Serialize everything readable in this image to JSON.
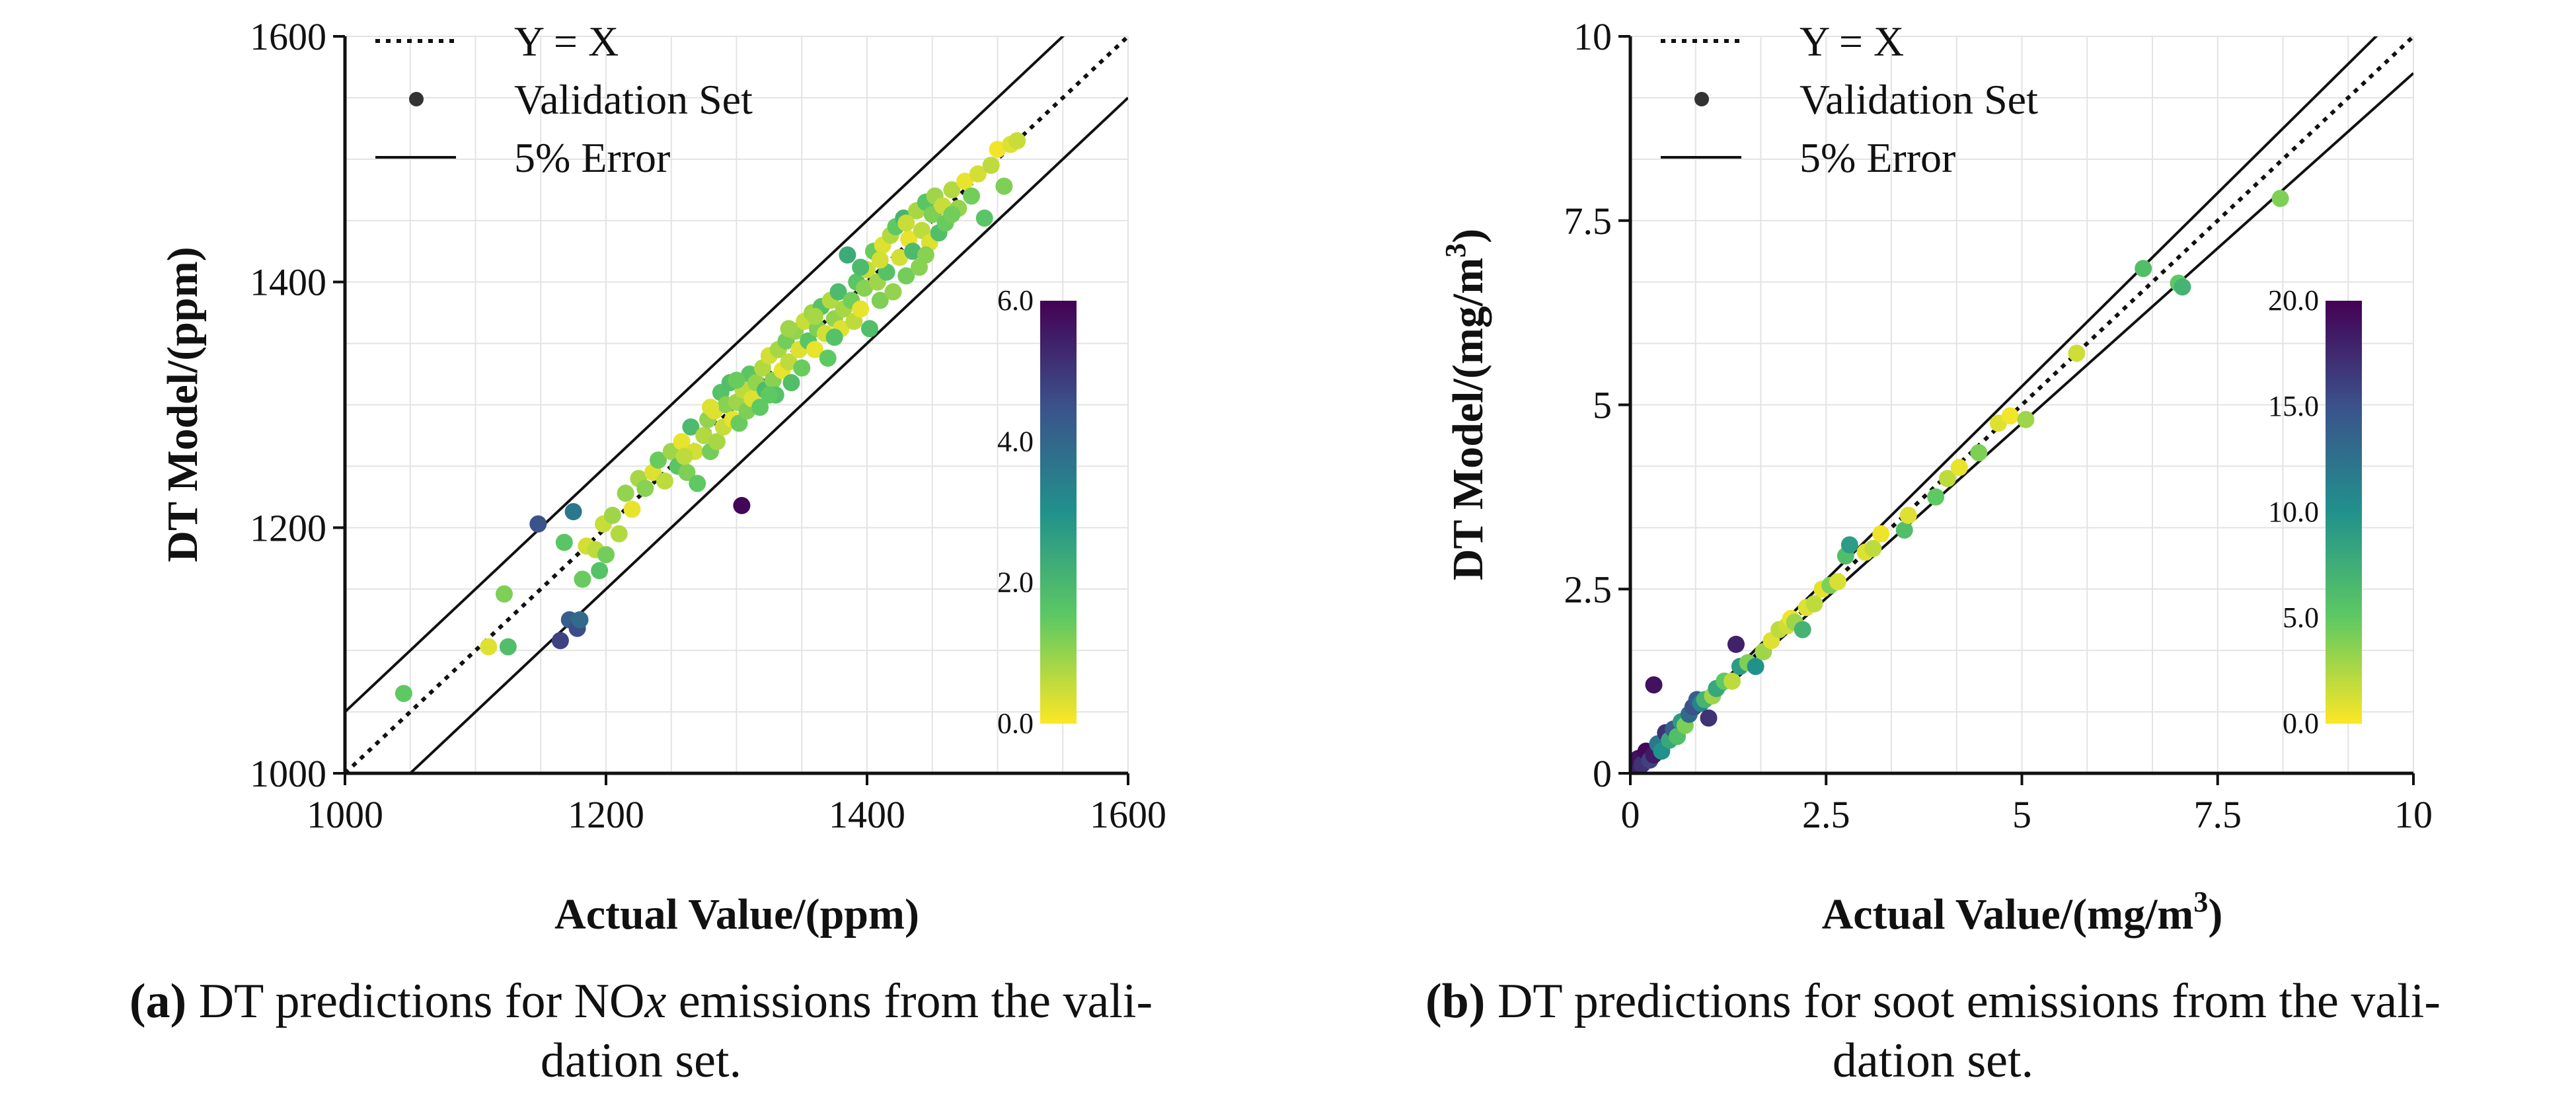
{
  "chart_data": [
    {
      "type": "scatter",
      "id": "a",
      "xlabel": "Actual Value/(ppm)",
      "ylabel": "DT Model/(ppm)",
      "xlim": [
        1000,
        1600
      ],
      "ylim": [
        1000,
        1600
      ],
      "xticks": [
        "1000",
        "1200",
        "1400",
        "1600"
      ],
      "yticks": [
        "1000",
        "1200",
        "1400",
        "1600"
      ],
      "grid": true,
      "legend": [
        "Y = X",
        "Validation Set",
        "5% Error"
      ],
      "legend_position": "top-left",
      "error_band_pct": 5,
      "colorbar": {
        "ticks": [
          "0.0",
          "2.0",
          "4.0",
          "6.0"
        ],
        "range": [
          0,
          6
        ],
        "colormap": "viridis_r"
      },
      "caption_tag": "(a)",
      "caption_text_1": " DT predictions for NO",
      "caption_italic": "x",
      "caption_text_2": " emissions from the vali-",
      "caption_line_2": "dation set.",
      "points": [
        {
          "x": 1045,
          "y": 1065,
          "c": 1.5
        },
        {
          "x": 1110,
          "y": 1103,
          "c": 0.3
        },
        {
          "x": 1122,
          "y": 1146,
          "c": 1.2
        },
        {
          "x": 1125,
          "y": 1103,
          "c": 1.8
        },
        {
          "x": 1148,
          "y": 1203,
          "c": 4.5
        },
        {
          "x": 1165,
          "y": 1108,
          "c": 4.8
        },
        {
          "x": 1172,
          "y": 1125,
          "c": 4.2
        },
        {
          "x": 1178,
          "y": 1118,
          "c": 4.6
        },
        {
          "x": 1175,
          "y": 1213,
          "c": 3.6
        },
        {
          "x": 1180,
          "y": 1125,
          "c": 3.9
        },
        {
          "x": 1168,
          "y": 1188,
          "c": 1.6
        },
        {
          "x": 1182,
          "y": 1158,
          "c": 1.4
        },
        {
          "x": 1185,
          "y": 1185,
          "c": 0.4
        },
        {
          "x": 1192,
          "y": 1182,
          "c": 0.6
        },
        {
          "x": 1195,
          "y": 1165,
          "c": 1.7
        },
        {
          "x": 1200,
          "y": 1178,
          "c": 1.3
        },
        {
          "x": 1198,
          "y": 1203,
          "c": 0.5
        },
        {
          "x": 1205,
          "y": 1210,
          "c": 0.9
        },
        {
          "x": 1210,
          "y": 1195,
          "c": 0.7
        },
        {
          "x": 1215,
          "y": 1228,
          "c": 1.0
        },
        {
          "x": 1220,
          "y": 1215,
          "c": 0.2
        },
        {
          "x": 1225,
          "y": 1240,
          "c": 0.8
        },
        {
          "x": 1230,
          "y": 1232,
          "c": 1.1
        },
        {
          "x": 1236,
          "y": 1245,
          "c": 0.3
        },
        {
          "x": 1240,
          "y": 1255,
          "c": 1.4
        },
        {
          "x": 1245,
          "y": 1238,
          "c": 0.6
        },
        {
          "x": 1250,
          "y": 1262,
          "c": 0.9
        },
        {
          "x": 1255,
          "y": 1250,
          "c": 1.6
        },
        {
          "x": 1258,
          "y": 1270,
          "c": 0.2
        },
        {
          "x": 1262,
          "y": 1245,
          "c": 1.2
        },
        {
          "x": 1265,
          "y": 1282,
          "c": 1.9
        },
        {
          "x": 1268,
          "y": 1262,
          "c": 0.4
        },
        {
          "x": 1270,
          "y": 1236,
          "c": 1.5
        },
        {
          "x": 1275,
          "y": 1275,
          "c": 0.7
        },
        {
          "x": 1278,
          "y": 1288,
          "c": 1.0
        },
        {
          "x": 1280,
          "y": 1262,
          "c": 1.3
        },
        {
          "x": 1283,
          "y": 1295,
          "c": 0.3
        },
        {
          "x": 1285,
          "y": 1270,
          "c": 0.8
        },
        {
          "x": 1288,
          "y": 1310,
          "c": 1.7
        },
        {
          "x": 1290,
          "y": 1282,
          "c": 0.5
        },
        {
          "x": 1292,
          "y": 1300,
          "c": 1.1
        },
        {
          "x": 1295,
          "y": 1318,
          "c": 1.8
        },
        {
          "x": 1297,
          "y": 1288,
          "c": 0.2
        },
        {
          "x": 1300,
          "y": 1302,
          "c": 0.9
        },
        {
          "x": 1302,
          "y": 1285,
          "c": 1.4
        },
        {
          "x": 1304,
          "y": 1218,
          "c": 5.9
        },
        {
          "x": 1305,
          "y": 1312,
          "c": 0.6
        },
        {
          "x": 1308,
          "y": 1295,
          "c": 1.2
        },
        {
          "x": 1310,
          "y": 1325,
          "c": 1.6
        },
        {
          "x": 1312,
          "y": 1305,
          "c": 0.3
        },
        {
          "x": 1315,
          "y": 1318,
          "c": 1.0
        },
        {
          "x": 1318,
          "y": 1298,
          "c": 1.5
        },
        {
          "x": 1320,
          "y": 1330,
          "c": 0.7
        },
        {
          "x": 1322,
          "y": 1312,
          "c": 1.9
        },
        {
          "x": 1325,
          "y": 1340,
          "c": 0.4
        },
        {
          "x": 1328,
          "y": 1320,
          "c": 1.1
        },
        {
          "x": 1330,
          "y": 1308,
          "c": 1.7
        },
        {
          "x": 1332,
          "y": 1345,
          "c": 0.8
        },
        {
          "x": 1335,
          "y": 1328,
          "c": 0.2
        },
        {
          "x": 1338,
          "y": 1352,
          "c": 1.3
        },
        {
          "x": 1340,
          "y": 1335,
          "c": 0.6
        },
        {
          "x": 1342,
          "y": 1318,
          "c": 1.8
        },
        {
          "x": 1345,
          "y": 1360,
          "c": 1.0
        },
        {
          "x": 1348,
          "y": 1345,
          "c": 0.3
        },
        {
          "x": 1350,
          "y": 1330,
          "c": 1.4
        },
        {
          "x": 1352,
          "y": 1368,
          "c": 0.5
        },
        {
          "x": 1355,
          "y": 1352,
          "c": 1.6
        },
        {
          "x": 1358,
          "y": 1375,
          "c": 0.9
        },
        {
          "x": 1360,
          "y": 1345,
          "c": 0.2
        },
        {
          "x": 1362,
          "y": 1362,
          "c": 1.2
        },
        {
          "x": 1365,
          "y": 1380,
          "c": 1.7
        },
        {
          "x": 1368,
          "y": 1358,
          "c": 0.4
        },
        {
          "x": 1370,
          "y": 1338,
          "c": 1.5
        },
        {
          "x": 1372,
          "y": 1385,
          "c": 0.7
        },
        {
          "x": 1375,
          "y": 1370,
          "c": 1.0
        },
        {
          "x": 1378,
          "y": 1392,
          "c": 1.9
        },
        {
          "x": 1380,
          "y": 1362,
          "c": 0.3
        },
        {
          "x": 1382,
          "y": 1378,
          "c": 0.8
        },
        {
          "x": 1385,
          "y": 1422,
          "c": 2.3
        },
        {
          "x": 1388,
          "y": 1385,
          "c": 1.3
        },
        {
          "x": 1390,
          "y": 1368,
          "c": 0.6
        },
        {
          "x": 1392,
          "y": 1400,
          "c": 1.6
        },
        {
          "x": 1395,
          "y": 1378,
          "c": 0.2
        },
        {
          "x": 1398,
          "y": 1395,
          "c": 1.1
        },
        {
          "x": 1400,
          "y": 1410,
          "c": 0.5
        },
        {
          "x": 1402,
          "y": 1362,
          "c": 1.8
        },
        {
          "x": 1405,
          "y": 1425,
          "c": 1.4
        },
        {
          "x": 1408,
          "y": 1400,
          "c": 0.9
        },
        {
          "x": 1410,
          "y": 1385,
          "c": 1.2
        },
        {
          "x": 1412,
          "y": 1430,
          "c": 0.3
        },
        {
          "x": 1415,
          "y": 1408,
          "c": 1.7
        },
        {
          "x": 1418,
          "y": 1438,
          "c": 0.7
        },
        {
          "x": 1420,
          "y": 1392,
          "c": 1.0
        },
        {
          "x": 1422,
          "y": 1445,
          "c": 1.5
        },
        {
          "x": 1425,
          "y": 1420,
          "c": 0.4
        },
        {
          "x": 1428,
          "y": 1452,
          "c": 2.1
        },
        {
          "x": 1430,
          "y": 1405,
          "c": 1.3
        },
        {
          "x": 1432,
          "y": 1435,
          "c": 0.2
        },
        {
          "x": 1435,
          "y": 1425,
          "c": 1.9
        },
        {
          "x": 1438,
          "y": 1458,
          "c": 0.8
        },
        {
          "x": 1440,
          "y": 1412,
          "c": 1.1
        },
        {
          "x": 1442,
          "y": 1442,
          "c": 0.6
        },
        {
          "x": 1445,
          "y": 1465,
          "c": 1.6
        },
        {
          "x": 1448,
          "y": 1432,
          "c": 0.3
        },
        {
          "x": 1450,
          "y": 1455,
          "c": 1.2
        },
        {
          "x": 1452,
          "y": 1470,
          "c": 0.9
        },
        {
          "x": 1455,
          "y": 1440,
          "c": 1.8
        },
        {
          "x": 1458,
          "y": 1462,
          "c": 0.5
        },
        {
          "x": 1460,
          "y": 1448,
          "c": 1.4
        },
        {
          "x": 1465,
          "y": 1475,
          "c": 0.7
        },
        {
          "x": 1470,
          "y": 1460,
          "c": 1.0
        },
        {
          "x": 1475,
          "y": 1482,
          "c": 0.2
        },
        {
          "x": 1480,
          "y": 1470,
          "c": 1.3
        },
        {
          "x": 1485,
          "y": 1488,
          "c": 0.4
        },
        {
          "x": 1490,
          "y": 1452,
          "c": 1.6
        },
        {
          "x": 1495,
          "y": 1495,
          "c": 0.6
        },
        {
          "x": 1500,
          "y": 1508,
          "c": 0.1
        },
        {
          "x": 1505,
          "y": 1478,
          "c": 1.2
        },
        {
          "x": 1510,
          "y": 1512,
          "c": 0.3
        },
        {
          "x": 1515,
          "y": 1515,
          "c": 0.5
        },
        {
          "x": 1260,
          "y": 1258,
          "c": 0.6
        },
        {
          "x": 1300,
          "y": 1320,
          "c": 1.4
        },
        {
          "x": 1340,
          "y": 1362,
          "c": 0.9
        },
        {
          "x": 1375,
          "y": 1355,
          "c": 1.7
        },
        {
          "x": 1410,
          "y": 1418,
          "c": 0.4
        },
        {
          "x": 1445,
          "y": 1422,
          "c": 1.1
        },
        {
          "x": 1280,
          "y": 1298,
          "c": 0.3
        },
        {
          "x": 1325,
          "y": 1308,
          "c": 1.5
        },
        {
          "x": 1360,
          "y": 1372,
          "c": 0.8
        },
        {
          "x": 1395,
          "y": 1412,
          "c": 1.9
        },
        {
          "x": 1430,
          "y": 1448,
          "c": 0.5
        },
        {
          "x": 1465,
          "y": 1455,
          "c": 1.3
        }
      ]
    },
    {
      "type": "scatter",
      "id": "b",
      "xlabel_main": "Actual Value/(mg/m",
      "xlabel_sup": "3",
      "xlabel_end": ")",
      "ylabel_main": "DT Model/(mg/m",
      "ylabel_sup": "3",
      "ylabel_end": ")",
      "xlim": [
        0,
        10
      ],
      "ylim": [
        0,
        10
      ],
      "xticks": [
        "0",
        "2.5",
        "5",
        "7.5",
        "10"
      ],
      "yticks": [
        "0",
        "2.5",
        "5",
        "7.5",
        "10"
      ],
      "grid": true,
      "legend": [
        "Y = X",
        "Validation Set",
        "5% Error"
      ],
      "legend_position": "top-left",
      "error_band_pct": 5,
      "colorbar": {
        "ticks": [
          "0.0",
          "5.0",
          "10.0",
          "15.0",
          "20.0"
        ],
        "range": [
          0,
          20
        ],
        "colormap": "viridis_r"
      },
      "caption_tag": "(b)",
      "caption_text_1": " DT predictions for soot emissions from the vali-",
      "caption_line_2": "dation set.",
      "points": [
        {
          "x": 0.05,
          "y": 0.05,
          "c": 18
        },
        {
          "x": 0.1,
          "y": 0.2,
          "c": 19
        },
        {
          "x": 0.15,
          "y": 0.12,
          "c": 17
        },
        {
          "x": 0.2,
          "y": 0.3,
          "c": 19.5
        },
        {
          "x": 0.25,
          "y": 0.18,
          "c": 16
        },
        {
          "x": 0.3,
          "y": 0.25,
          "c": 18.5
        },
        {
          "x": 0.3,
          "y": 1.2,
          "c": 19
        },
        {
          "x": 0.35,
          "y": 0.4,
          "c": 12
        },
        {
          "x": 0.4,
          "y": 0.3,
          "c": 10
        },
        {
          "x": 0.45,
          "y": 0.55,
          "c": 17
        },
        {
          "x": 0.5,
          "y": 0.45,
          "c": 8
        },
        {
          "x": 0.55,
          "y": 0.6,
          "c": 14
        },
        {
          "x": 0.6,
          "y": 0.5,
          "c": 6
        },
        {
          "x": 0.65,
          "y": 0.7,
          "c": 9
        },
        {
          "x": 0.7,
          "y": 0.65,
          "c": 4
        },
        {
          "x": 0.75,
          "y": 0.8,
          "c": 13
        },
        {
          "x": 0.8,
          "y": 0.9,
          "c": 15
        },
        {
          "x": 0.85,
          "y": 1.0,
          "c": 14
        },
        {
          "x": 0.9,
          "y": 0.95,
          "c": 11
        },
        {
          "x": 0.95,
          "y": 1.0,
          "c": 7
        },
        {
          "x": 1.0,
          "y": 0.75,
          "c": 17
        },
        {
          "x": 1.05,
          "y": 1.05,
          "c": 3
        },
        {
          "x": 1.1,
          "y": 1.15,
          "c": 8
        },
        {
          "x": 1.2,
          "y": 1.25,
          "c": 5
        },
        {
          "x": 1.3,
          "y": 1.25,
          "c": 2
        },
        {
          "x": 1.35,
          "y": 1.75,
          "c": 18
        },
        {
          "x": 1.4,
          "y": 1.45,
          "c": 9
        },
        {
          "x": 1.5,
          "y": 1.5,
          "c": 4
        },
        {
          "x": 1.6,
          "y": 1.45,
          "c": 10
        },
        {
          "x": 1.7,
          "y": 1.65,
          "c": 3
        },
        {
          "x": 1.8,
          "y": 1.8,
          "c": 1
        },
        {
          "x": 1.9,
          "y": 1.95,
          "c": 2
        },
        {
          "x": 2.0,
          "y": 2.0,
          "c": 1.5
        },
        {
          "x": 2.05,
          "y": 2.1,
          "c": 0.5
        },
        {
          "x": 2.1,
          "y": 2.05,
          "c": 3
        },
        {
          "x": 2.2,
          "y": 1.95,
          "c": 7
        },
        {
          "x": 2.25,
          "y": 2.25,
          "c": 1
        },
        {
          "x": 2.35,
          "y": 2.3,
          "c": 2
        },
        {
          "x": 2.45,
          "y": 2.5,
          "c": 0.8
        },
        {
          "x": 2.55,
          "y": 2.55,
          "c": 4
        },
        {
          "x": 2.65,
          "y": 2.6,
          "c": 1.2
        },
        {
          "x": 2.75,
          "y": 2.95,
          "c": 6
        },
        {
          "x": 2.8,
          "y": 3.1,
          "c": 9
        },
        {
          "x": 3.0,
          "y": 3.0,
          "c": 1
        },
        {
          "x": 3.1,
          "y": 3.05,
          "c": 2
        },
        {
          "x": 3.2,
          "y": 3.25,
          "c": 0.5
        },
        {
          "x": 3.5,
          "y": 3.3,
          "c": 6
        },
        {
          "x": 3.55,
          "y": 3.5,
          "c": 1
        },
        {
          "x": 3.9,
          "y": 3.75,
          "c": 5
        },
        {
          "x": 4.05,
          "y": 4.0,
          "c": 2
        },
        {
          "x": 4.2,
          "y": 4.15,
          "c": 0.6
        },
        {
          "x": 4.45,
          "y": 4.35,
          "c": 4
        },
        {
          "x": 4.7,
          "y": 4.75,
          "c": 1
        },
        {
          "x": 4.85,
          "y": 4.85,
          "c": 0.3
        },
        {
          "x": 5.05,
          "y": 4.8,
          "c": 3
        },
        {
          "x": 5.7,
          "y": 5.7,
          "c": 1.5
        },
        {
          "x": 6.55,
          "y": 6.85,
          "c": 6
        },
        {
          "x": 7.0,
          "y": 6.65,
          "c": 5
        },
        {
          "x": 7.05,
          "y": 6.6,
          "c": 7
        },
        {
          "x": 8.3,
          "y": 7.8,
          "c": 4
        }
      ]
    }
  ]
}
